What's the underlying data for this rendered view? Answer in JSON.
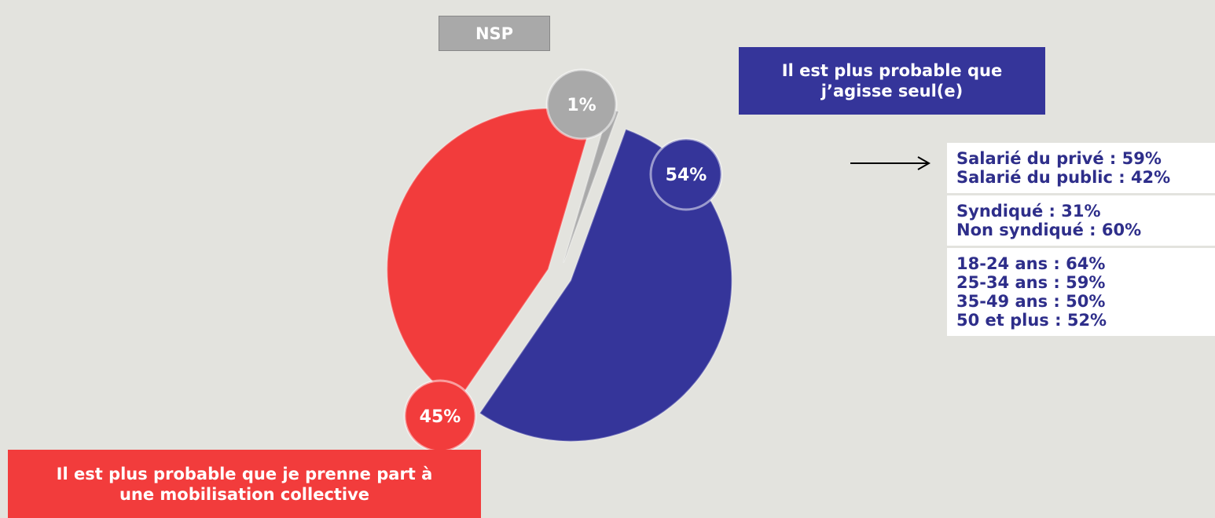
{
  "chart_data": {
    "type": "pie",
    "categories": [
      "Il est plus probable que j’agisse seul(e)",
      "Il est plus probable que je prenne part à une mobilisation collective",
      "NSP"
    ],
    "values": [
      54,
      45,
      1
    ],
    "value_labels": [
      "54%",
      "45%",
      "1%"
    ],
    "colors": [
      "#35359a",
      "#f23c3c",
      "#a9a9a9"
    ]
  },
  "annotations": [
    [
      "Salarié du privé : 59%",
      "Salarié du public : 42%"
    ],
    [
      "Syndiqué : 31%",
      "Non syndiqué : 60%"
    ],
    [
      "18-24 ans : 64%",
      "25-34 ans : 59%",
      "35-49 ans : 50%",
      "50 et plus : 52%"
    ]
  ]
}
